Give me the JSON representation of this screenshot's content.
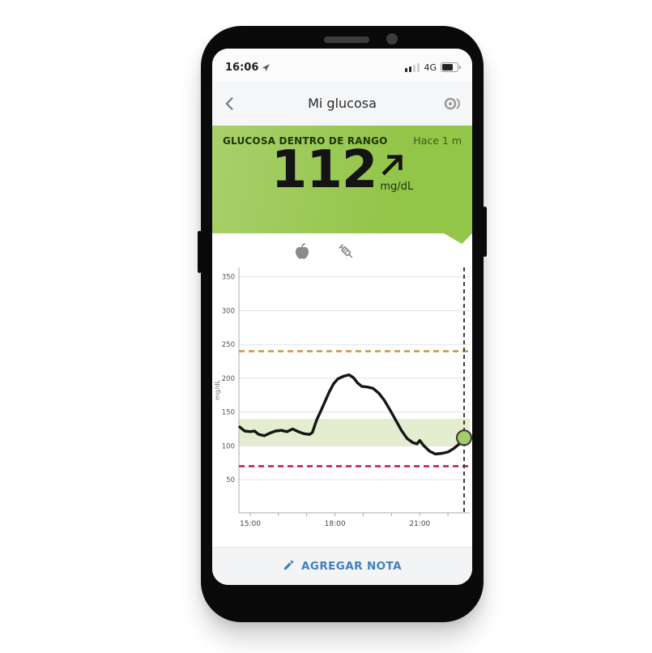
{
  "status_bar": {
    "time": "16:06",
    "network": "4G"
  },
  "nav_bar": {
    "title": "Mi glucosa"
  },
  "banner": {
    "status_label": "GLUCOSA DENTRO DE RANGO",
    "time_ago": "Hace 1 m",
    "value": "112",
    "unit": "mg/dL",
    "trend": "rising",
    "background_color": "#96c64d"
  },
  "event_icons": [
    {
      "name": "food-apple"
    },
    {
      "name": "insulin-syringe"
    }
  ],
  "chart_data": {
    "type": "line",
    "ylabel": "mg/dL",
    "ylim": [
      1,
      364
    ],
    "xlim": [
      14.6,
      22.77
    ],
    "grid": true,
    "y_ticks": [
      50,
      100,
      150,
      200,
      250,
      300,
      350
    ],
    "x_hour_ticks": [
      15,
      16,
      17,
      18,
      19,
      20,
      21,
      22
    ],
    "x_tick_labels": [
      {
        "t": 15,
        "label": "15:00"
      },
      {
        "t": 18,
        "label": "18:00"
      },
      {
        "t": 21,
        "label": "21:00"
      }
    ],
    "target_range": {
      "low": 100,
      "high": 140,
      "color": "#e4edcf"
    },
    "high_threshold": {
      "value": 240,
      "color": "#c9953b"
    },
    "low_threshold": {
      "value": 70,
      "color": "#c41e4f"
    },
    "now_line_t": 22.57,
    "current_point": {
      "t": 22.57,
      "value": 112,
      "color": "#a5cb6d"
    },
    "series": [
      {
        "name": "glucose",
        "color": "#151515",
        "points": [
          [
            14.63,
            128
          ],
          [
            14.8,
            122
          ],
          [
            15.0,
            121
          ],
          [
            15.15,
            122
          ],
          [
            15.3,
            117
          ],
          [
            15.5,
            115
          ],
          [
            15.7,
            119
          ],
          [
            15.9,
            122
          ],
          [
            16.1,
            123
          ],
          [
            16.3,
            121
          ],
          [
            16.5,
            125
          ],
          [
            16.7,
            121
          ],
          [
            16.9,
            118
          ],
          [
            17.1,
            117
          ],
          [
            17.2,
            120
          ],
          [
            17.35,
            138
          ],
          [
            17.5,
            152
          ],
          [
            17.65,
            166
          ],
          [
            17.8,
            180
          ],
          [
            17.95,
            192
          ],
          [
            18.1,
            199
          ],
          [
            18.3,
            203
          ],
          [
            18.5,
            205
          ],
          [
            18.65,
            201
          ],
          [
            18.8,
            193
          ],
          [
            18.95,
            188
          ],
          [
            19.15,
            187
          ],
          [
            19.35,
            185
          ],
          [
            19.55,
            178
          ],
          [
            19.75,
            167
          ],
          [
            19.95,
            153
          ],
          [
            20.15,
            138
          ],
          [
            20.35,
            123
          ],
          [
            20.55,
            111
          ],
          [
            20.75,
            105
          ],
          [
            20.9,
            103
          ],
          [
            21.0,
            108
          ],
          [
            21.15,
            100
          ],
          [
            21.35,
            92
          ],
          [
            21.55,
            88
          ],
          [
            21.8,
            89
          ],
          [
            22.0,
            91
          ],
          [
            22.2,
            96
          ],
          [
            22.4,
            103
          ],
          [
            22.57,
            112
          ]
        ]
      }
    ]
  },
  "note_bar": {
    "label": "AGREGAR NOTA",
    "color": "#4181ba"
  }
}
